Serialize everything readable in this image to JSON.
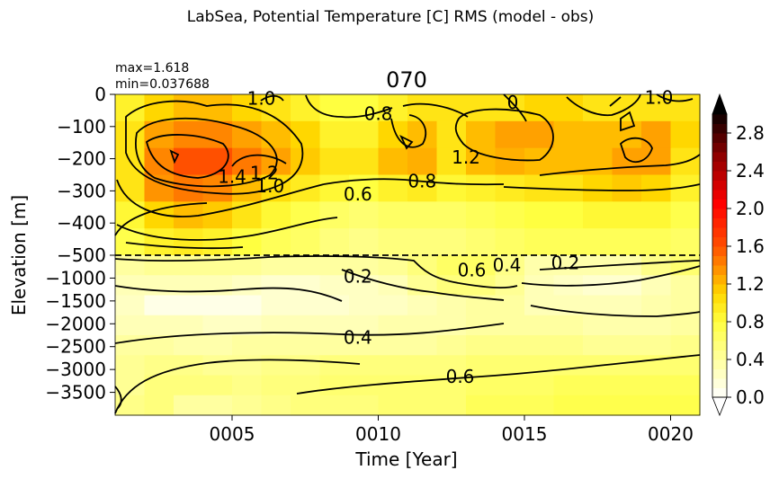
{
  "chart_data": {
    "type": "heatmap",
    "suptitle": "LabSea, Potential Temperature [C] RMS (model - obs)",
    "title": "070",
    "stats": [
      "max=1.618",
      "min=0.037688"
    ],
    "xlabel": "Time [Year]",
    "ylabel": "Elevation [m]",
    "x_range": [
      1,
      21
    ],
    "x_ticks": [
      {
        "value": 5,
        "label": "0005"
      },
      {
        "value": 10,
        "label": "0010"
      },
      {
        "value": 15,
        "label": "0015"
      },
      {
        "value": 20,
        "label": "0020"
      }
    ],
    "y_ticks_upper": [
      {
        "value": 0,
        "label": "0"
      },
      {
        "value": -100,
        "label": "−100"
      },
      {
        "value": -200,
        "label": "−200"
      },
      {
        "value": -300,
        "label": "−300"
      },
      {
        "value": -400,
        "label": "−400"
      },
      {
        "value": -500,
        "label": "−500"
      }
    ],
    "y_ticks_lower": [
      {
        "value": -1000,
        "label": "−1000"
      },
      {
        "value": -1500,
        "label": "−1500"
      },
      {
        "value": -2000,
        "label": "−2000"
      },
      {
        "value": -2500,
        "label": "−2500"
      },
      {
        "value": -3000,
        "label": "−3000"
      },
      {
        "value": -3500,
        "label": "−3500"
      }
    ],
    "y_break_depth": -500,
    "y_bottom_depth": -4000,
    "colorbar": {
      "range": [
        0.0,
        3.0
      ],
      "extend": "both",
      "tick_values": [
        0.0,
        0.4,
        0.8,
        1.2,
        1.6,
        2.0,
        2.4,
        2.8
      ],
      "tick_labels": [
        "0.0",
        "0.4",
        "0.8",
        "1.2",
        "1.6",
        "2.0",
        "2.4",
        "2.8"
      ],
      "levels": 30,
      "under_color": "#ffffff",
      "over_color": "#000000"
    },
    "contour_labels": [
      {
        "text": "1.0",
        "x": 6.0,
        "y": -12
      },
      {
        "text": "0.8",
        "x": 10.0,
        "y": -60
      },
      {
        "text": "0",
        "x": 14.6,
        "y": -25
      },
      {
        "text": "1.0",
        "x": 19.6,
        "y": -10
      },
      {
        "text": "1.4",
        "x": 5.0,
        "y": -255
      },
      {
        "text": "1.2",
        "x": 6.1,
        "y": -245
      },
      {
        "text": "1.0",
        "x": 6.3,
        "y": -285
      },
      {
        "text": "0.6",
        "x": 9.3,
        "y": -310
      },
      {
        "text": "1.2",
        "x": 13.0,
        "y": -195
      },
      {
        "text": "0.8",
        "x": 11.5,
        "y": -270
      },
      {
        "text": "0.2",
        "x": 9.3,
        "y": -965
      },
      {
        "text": "0.6",
        "x": 13.2,
        "y": -820
      },
      {
        "text": "0.4",
        "x": 14.4,
        "y": -720
      },
      {
        "text": "0.2",
        "x": 16.4,
        "y": -670
      },
      {
        "text": "0.4",
        "x": 9.3,
        "y": -2300
      },
      {
        "text": "0.6",
        "x": 12.8,
        "y": -3150
      }
    ],
    "grid": [
      [
        0.9,
        1.1,
        1.2,
        1.2,
        1.1,
        1.0,
        0.9,
        0.8,
        0.8,
        0.9,
        1.0,
        1.0,
        1.0,
        1.0,
        1.1,
        1.1,
        1.0,
        1.0,
        1.0,
        1.0
      ],
      [
        1.0,
        1.3,
        1.4,
        1.4,
        1.3,
        1.2,
        1.1,
        0.9,
        0.9,
        1.1,
        1.2,
        1.0,
        1.2,
        1.3,
        1.3,
        1.2,
        1.2,
        1.2,
        1.3,
        1.1
      ],
      [
        1.0,
        1.4,
        1.6,
        1.6,
        1.45,
        1.3,
        1.15,
        1.0,
        1.0,
        1.2,
        1.25,
        1.0,
        1.2,
        1.25,
        1.2,
        1.2,
        1.2,
        1.3,
        1.3,
        1.0
      ],
      [
        1.0,
        1.35,
        1.45,
        1.4,
        1.2,
        1.05,
        0.95,
        0.85,
        0.8,
        0.9,
        0.95,
        0.85,
        0.9,
        0.95,
        1.0,
        1.0,
        1.1,
        1.15,
        1.1,
        0.9
      ],
      [
        0.85,
        1.1,
        1.2,
        1.15,
        1.0,
        0.85,
        0.75,
        0.65,
        0.6,
        0.65,
        0.65,
        0.65,
        0.7,
        0.75,
        0.8,
        0.8,
        0.85,
        0.85,
        0.85,
        0.75
      ],
      [
        0.75,
        0.9,
        0.95,
        0.9,
        0.8,
        0.7,
        0.65,
        0.55,
        0.5,
        0.55,
        0.55,
        0.55,
        0.6,
        0.65,
        0.7,
        0.7,
        0.7,
        0.7,
        0.7,
        0.65
      ],
      [
        0.4,
        0.45,
        0.45,
        0.45,
        0.45,
        0.4,
        0.4,
        0.4,
        0.4,
        0.45,
        0.55,
        0.65,
        0.65,
        0.5,
        0.35,
        0.35,
        0.35,
        0.35,
        0.5,
        0.6
      ],
      [
        0.3,
        0.3,
        0.3,
        0.3,
        0.25,
        0.2,
        0.2,
        0.25,
        0.25,
        0.3,
        0.45,
        0.55,
        0.55,
        0.45,
        0.3,
        0.25,
        0.2,
        0.2,
        0.3,
        0.4
      ],
      [
        0.25,
        0.1,
        0.1,
        0.1,
        0.1,
        0.2,
        0.2,
        0.2,
        0.25,
        0.25,
        0.3,
        0.35,
        0.4,
        0.4,
        0.3,
        0.3,
        0.3,
        0.3,
        0.35,
        0.4
      ],
      [
        0.3,
        0.3,
        0.3,
        0.25,
        0.25,
        0.3,
        0.3,
        0.3,
        0.3,
        0.35,
        0.35,
        0.35,
        0.4,
        0.4,
        0.4,
        0.4,
        0.35,
        0.35,
        0.35,
        0.4
      ],
      [
        0.4,
        0.4,
        0.35,
        0.35,
        0.4,
        0.4,
        0.4,
        0.4,
        0.4,
        0.4,
        0.4,
        0.45,
        0.5,
        0.5,
        0.5,
        0.5,
        0.45,
        0.45,
        0.45,
        0.5
      ],
      [
        0.45,
        0.5,
        0.5,
        0.45,
        0.45,
        0.5,
        0.5,
        0.55,
        0.55,
        0.55,
        0.55,
        0.55,
        0.6,
        0.6,
        0.6,
        0.6,
        0.6,
        0.6,
        0.6,
        0.6
      ],
      [
        0.45,
        0.55,
        0.55,
        0.55,
        0.5,
        0.55,
        0.55,
        0.6,
        0.6,
        0.6,
        0.6,
        0.6,
        0.65,
        0.65,
        0.65,
        0.7,
        0.7,
        0.7,
        0.7,
        0.7
      ],
      [
        0.5,
        0.55,
        0.4,
        0.4,
        0.45,
        0.5,
        0.55,
        0.55,
        0.55,
        0.6,
        0.6,
        0.6,
        0.7,
        0.7,
        0.7,
        0.75,
        0.75,
        0.75,
        0.75,
        0.75
      ]
    ]
  }
}
